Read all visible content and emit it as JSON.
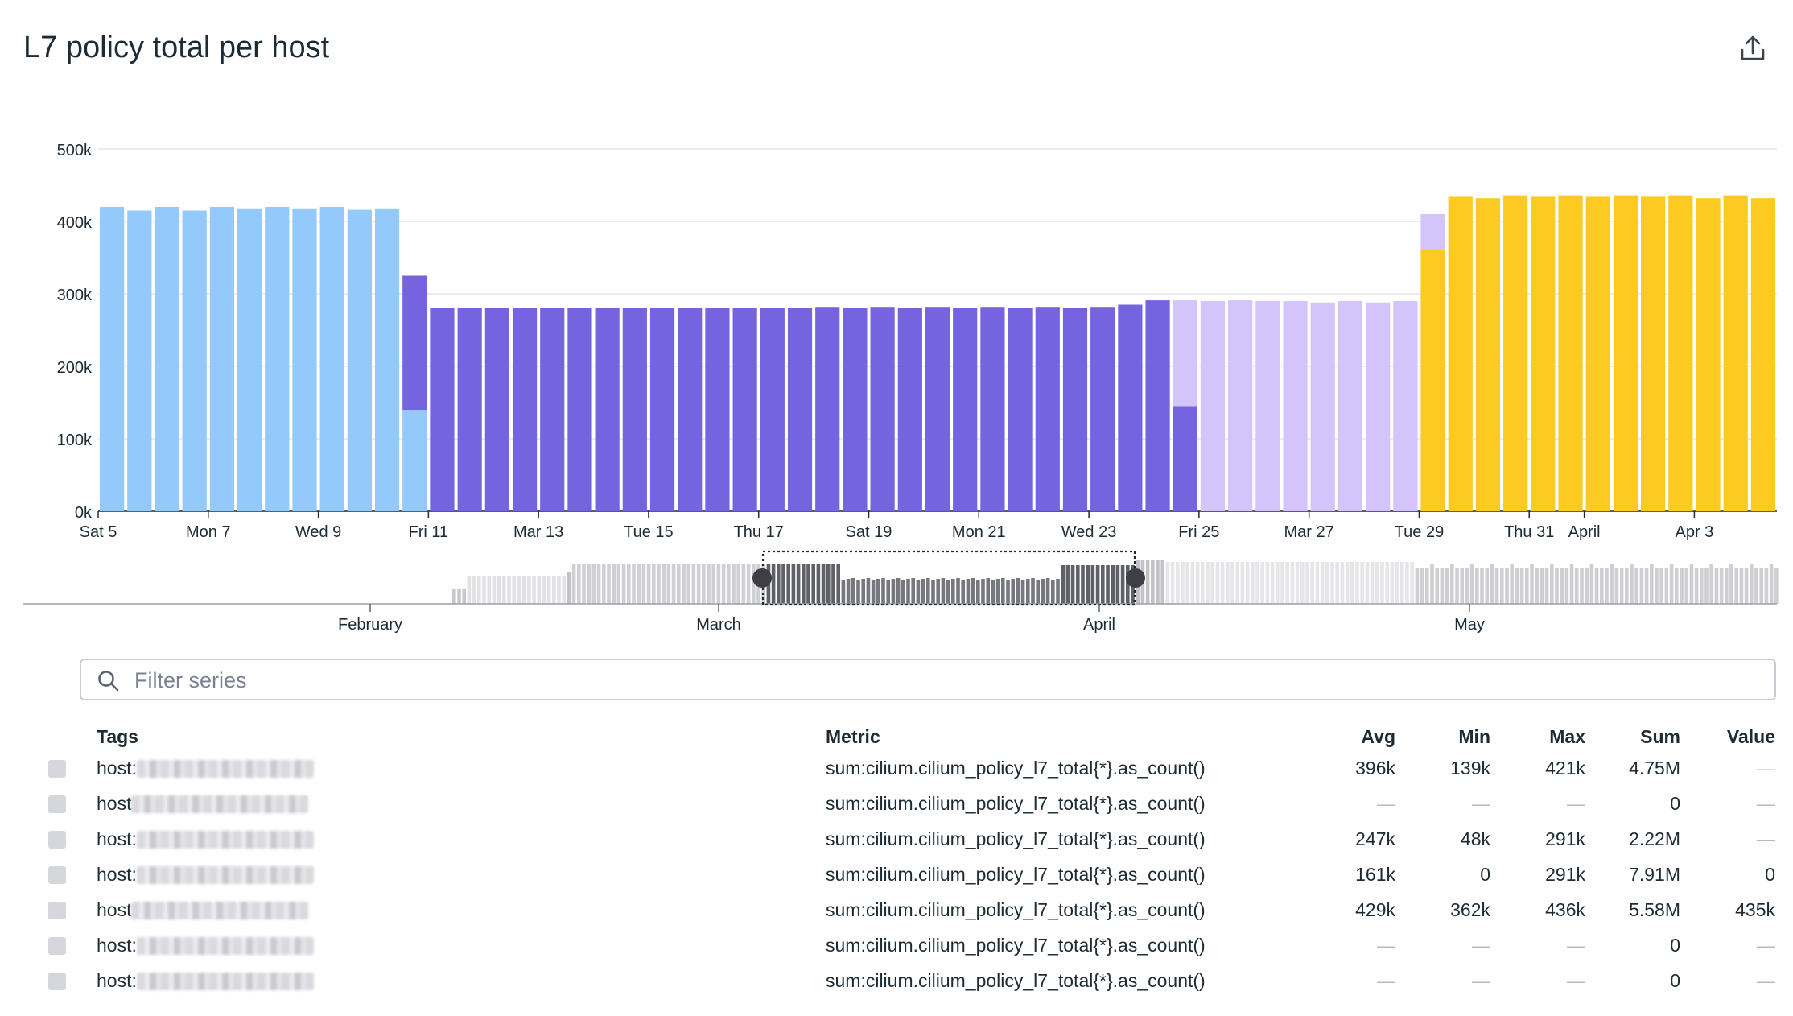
{
  "title": "L7 policy total per host",
  "icons": {
    "export": "export-icon",
    "search": "search-icon"
  },
  "filter": {
    "placeholder": "Filter series"
  },
  "chart_data": {
    "type": "bar",
    "stacked": true,
    "ylim": [
      0,
      500000
    ],
    "yticks": [
      "0k",
      "100k",
      "200k",
      "300k",
      "400k",
      "500k"
    ],
    "grid": true,
    "xtick_labels": [
      {
        "label": "Sat 5",
        "slot": 0
      },
      {
        "label": "Mon 7",
        "slot": 4
      },
      {
        "label": "Wed 9",
        "slot": 8
      },
      {
        "label": "Fri 11",
        "slot": 12
      },
      {
        "label": "Mar 13",
        "slot": 16
      },
      {
        "label": "Tue 15",
        "slot": 20
      },
      {
        "label": "Thu 17",
        "slot": 24
      },
      {
        "label": "Sat 19",
        "slot": 28
      },
      {
        "label": "Mon 21",
        "slot": 32
      },
      {
        "label": "Wed 23",
        "slot": 36
      },
      {
        "label": "Fri 25",
        "slot": 40
      },
      {
        "label": "Mar 27",
        "slot": 44
      },
      {
        "label": "Tue 29",
        "slot": 48
      },
      {
        "label": "Thu 31",
        "slot": 52
      },
      {
        "label": "April",
        "slot": 54
      },
      {
        "label": "Apr 3",
        "slot": 58
      }
    ],
    "series": [
      {
        "color": "#94c9fb",
        "values": [
          420000,
          415000,
          420000,
          415000,
          420000,
          418000,
          420000,
          418000,
          420000,
          416000,
          418000,
          140000,
          0,
          0,
          0,
          0,
          0,
          0,
          0,
          0,
          0,
          0,
          0,
          0,
          0,
          0,
          0,
          0,
          0,
          0,
          0,
          0,
          0,
          0,
          0,
          0,
          0,
          0,
          0,
          0,
          0,
          0,
          0,
          0,
          0,
          0,
          0,
          0,
          0,
          0,
          0,
          0,
          0,
          0,
          0,
          0,
          0,
          0,
          0,
          0,
          0
        ]
      },
      {
        "color": "#7563e0",
        "values": [
          0,
          0,
          0,
          0,
          0,
          0,
          0,
          0,
          0,
          0,
          0,
          185000,
          281000,
          280000,
          281000,
          280000,
          281000,
          280000,
          281000,
          280000,
          281000,
          280000,
          281000,
          280000,
          281000,
          280000,
          282000,
          281000,
          282000,
          281000,
          282000,
          281000,
          282000,
          281000,
          282000,
          281000,
          282000,
          285000,
          291000,
          145000,
          0,
          0,
          0,
          0,
          0,
          0,
          0,
          0,
          0,
          0,
          0,
          0,
          0,
          0,
          0,
          0,
          0,
          0,
          0,
          0,
          0
        ]
      },
      {
        "color": "#d5c4fb",
        "values": [
          0,
          0,
          0,
          0,
          0,
          0,
          0,
          0,
          0,
          0,
          0,
          0,
          0,
          0,
          0,
          0,
          0,
          0,
          0,
          0,
          0,
          0,
          0,
          0,
          0,
          0,
          0,
          0,
          0,
          0,
          0,
          0,
          0,
          0,
          0,
          0,
          0,
          0,
          0,
          146000,
          290000,
          291000,
          290000,
          290000,
          288000,
          290000,
          288000,
          290000,
          0,
          0,
          0,
          0,
          0,
          0,
          0,
          0,
          0,
          0,
          0,
          0,
          0
        ]
      },
      {
        "color": "#fdca22",
        "values": [
          0,
          0,
          0,
          0,
          0,
          0,
          0,
          0,
          0,
          0,
          0,
          0,
          0,
          0,
          0,
          0,
          0,
          0,
          0,
          0,
          0,
          0,
          0,
          0,
          0,
          0,
          0,
          0,
          0,
          0,
          0,
          0,
          0,
          0,
          0,
          0,
          0,
          0,
          0,
          0,
          0,
          0,
          0,
          0,
          0,
          0,
          0,
          0,
          362000,
          434000,
          432000,
          436000,
          434000,
          436000,
          434000,
          436000,
          434000,
          436000,
          432000,
          436000,
          432000
        ]
      }
    ],
    "extra_top": [
      0,
      0,
      0,
      0,
      0,
      0,
      0,
      0,
      0,
      0,
      0,
      0,
      0,
      0,
      0,
      0,
      0,
      0,
      0,
      0,
      0,
      0,
      0,
      0,
      0,
      0,
      0,
      0,
      0,
      0,
      0,
      0,
      0,
      0,
      0,
      0,
      0,
      0,
      0,
      0,
      0,
      0,
      0,
      0,
      0,
      0,
      0,
      0,
      48000,
      0,
      0,
      0,
      0,
      0,
      0,
      0,
      0,
      0,
      0,
      0,
      0
    ],
    "navigator": {
      "month_labels": [
        "February",
        "March",
        "April",
        "May"
      ]
    }
  },
  "legend": {
    "headers": {
      "tags": "Tags",
      "metric": "Metric",
      "avg": "Avg",
      "min": "Min",
      "max": "Max",
      "sum": "Sum",
      "value": "Value"
    },
    "rows": [
      {
        "tag": "host:",
        "metric": "sum:cilium.cilium_policy_l7_total{*}.as_count()",
        "avg": "396k",
        "min": "139k",
        "max": "421k",
        "sum": "4.75M",
        "value": "—"
      },
      {
        "tag": "host",
        "metric": "sum:cilium.cilium_policy_l7_total{*}.as_count()",
        "avg": "—",
        "min": "—",
        "max": "—",
        "sum": "0",
        "value": "—"
      },
      {
        "tag": "host:",
        "metric": "sum:cilium.cilium_policy_l7_total{*}.as_count()",
        "avg": "247k",
        "min": "48k",
        "max": "291k",
        "sum": "2.22M",
        "value": "—"
      },
      {
        "tag": "host:",
        "metric": "sum:cilium.cilium_policy_l7_total{*}.as_count()",
        "avg": "161k",
        "min": "0",
        "max": "291k",
        "sum": "7.91M",
        "value": "0"
      },
      {
        "tag": "host",
        "metric": "sum:cilium.cilium_policy_l7_total{*}.as_count()",
        "avg": "429k",
        "min": "362k",
        "max": "436k",
        "sum": "5.58M",
        "value": "435k"
      },
      {
        "tag": "host:",
        "metric": "sum:cilium.cilium_policy_l7_total{*}.as_count()",
        "avg": "—",
        "min": "—",
        "max": "—",
        "sum": "0",
        "value": "—"
      },
      {
        "tag": "host:",
        "metric": "sum:cilium.cilium_policy_l7_total{*}.as_count()",
        "avg": "—",
        "min": "—",
        "max": "—",
        "sum": "0",
        "value": "—"
      }
    ]
  }
}
